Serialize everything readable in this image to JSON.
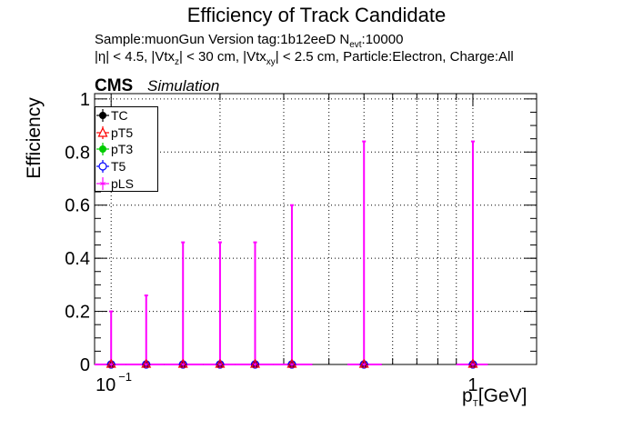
{
  "header": {
    "title": "Efficiency of Track Candidate",
    "sub1_a": "Sample:muonGun   Version tag:1b12eeD  N",
    "sub1_sub": "evt",
    "sub1_b": ":10000",
    "sub2_a": "|η| < 4.5, |Vtx",
    "sub2_z": "z",
    "sub2_b": "| < 30 cm, |Vtx",
    "sub2_xy": "xy",
    "sub2_c": "| < 2.5 cm, Particle:Electron, Charge:All",
    "cms": "CMS",
    "simulation": "Simulation"
  },
  "chart_data": {
    "type": "scatter",
    "title": "Efficiency of Track Candidate",
    "xlabel": "p_T [GeV]",
    "xlabel_main": "p",
    "xlabel_sub": "T",
    "xlabel_unit": "[GeV]",
    "ylabel": "Efficiency",
    "xscale": "log",
    "xlim": [
      0.09,
      1.5
    ],
    "ylim": [
      0,
      1.02
    ],
    "grid": true,
    "yticks": [
      0,
      0.2,
      0.4,
      0.6,
      0.8,
      1
    ],
    "ytick_labels": [
      "0",
      "0.2",
      "0.4",
      "0.6",
      "0.8",
      "1"
    ],
    "xtick_labels": [
      {
        "base": "10",
        "exp": "−1",
        "value": 0.1
      },
      {
        "base": "1",
        "exp": "",
        "value": 1
      }
    ],
    "legend": {
      "position": "top-left",
      "entries": [
        {
          "name": "TC",
          "color": "#000000",
          "marker": "filled-circle"
        },
        {
          "name": "pT5",
          "color": "#ff0000",
          "marker": "open-triangle"
        },
        {
          "name": "pT3",
          "color": "#00cc00",
          "marker": "filled-circle"
        },
        {
          "name": "T5",
          "color": "#0000ff",
          "marker": "open-circle"
        },
        {
          "name": "pLS",
          "color": "#ff00ff",
          "marker": "open-star"
        }
      ]
    },
    "bins": [
      {
        "x": 0.1,
        "xlo": 0.09,
        "xhi": 0.11,
        "y": 0,
        "yerr_hi": 0.2
      },
      {
        "x": 0.125,
        "xlo": 0.11,
        "xhi": 0.14,
        "y": 0,
        "yerr_hi": 0.26
      },
      {
        "x": 0.158,
        "xlo": 0.14,
        "xhi": 0.18,
        "y": 0,
        "yerr_hi": 0.46
      },
      {
        "x": 0.2,
        "xlo": 0.18,
        "xhi": 0.22,
        "y": 0,
        "yerr_hi": 0.46
      },
      {
        "x": 0.25,
        "xlo": 0.22,
        "xhi": 0.28,
        "y": 0,
        "yerr_hi": 0.46
      },
      {
        "x": 0.316,
        "xlo": 0.28,
        "xhi": 0.36,
        "y": 0,
        "yerr_hi": 0.6
      },
      {
        "x": 0.5,
        "xlo": 0.45,
        "xhi": 0.56,
        "y": 0,
        "yerr_hi": 0.84
      },
      {
        "x": 1.0,
        "xlo": 0.9,
        "xhi": 1.1,
        "y": 0,
        "yerr_hi": 0.84
      }
    ]
  }
}
